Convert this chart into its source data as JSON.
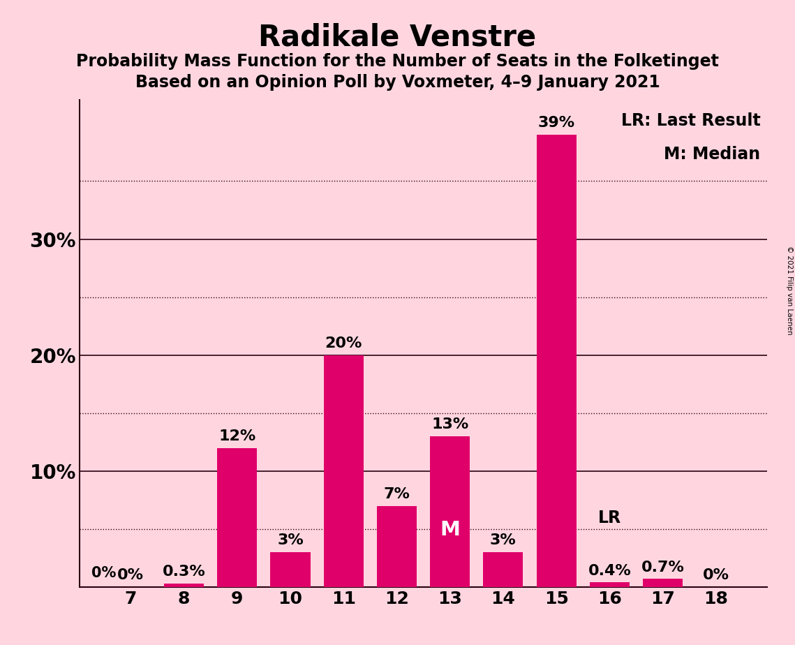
{
  "title": "Radikale Venstre",
  "subtitle1": "Probability Mass Function for the Number of Seats in the Folketinget",
  "subtitle2": "Based on an Opinion Poll by Voxmeter, 4–9 January 2021",
  "copyright": "© 2021 Filip van Laenen",
  "categories": [
    7,
    8,
    9,
    10,
    11,
    12,
    13,
    14,
    15,
    16,
    17,
    18
  ],
  "values": [
    0.0,
    0.3,
    12.0,
    3.0,
    20.0,
    7.0,
    13.0,
    3.0,
    39.0,
    0.4,
    0.7,
    0.0
  ],
  "labels": [
    "0%",
    "0.3%",
    "12%",
    "3%",
    "20%",
    "7%",
    "13%",
    "3%",
    "39%",
    "0.4%",
    "0.7%",
    "0%"
  ],
  "bar_color": "#E0006A",
  "background_color": "#FFD6E0",
  "title_fontsize": 30,
  "subtitle_fontsize": 17,
  "label_fontsize": 16,
  "tick_fontsize": 18,
  "median_seat": 13,
  "lr_seat": 16,
  "ylim": [
    0,
    42
  ],
  "solid_yticks": [
    10,
    20,
    30
  ],
  "dotted_yticks": [
    5,
    15,
    25,
    35
  ],
  "ytick_labels": [
    "10%",
    "20%",
    "30%"
  ],
  "legend_text1": "LR: Last Result",
  "legend_text2": "M: Median"
}
